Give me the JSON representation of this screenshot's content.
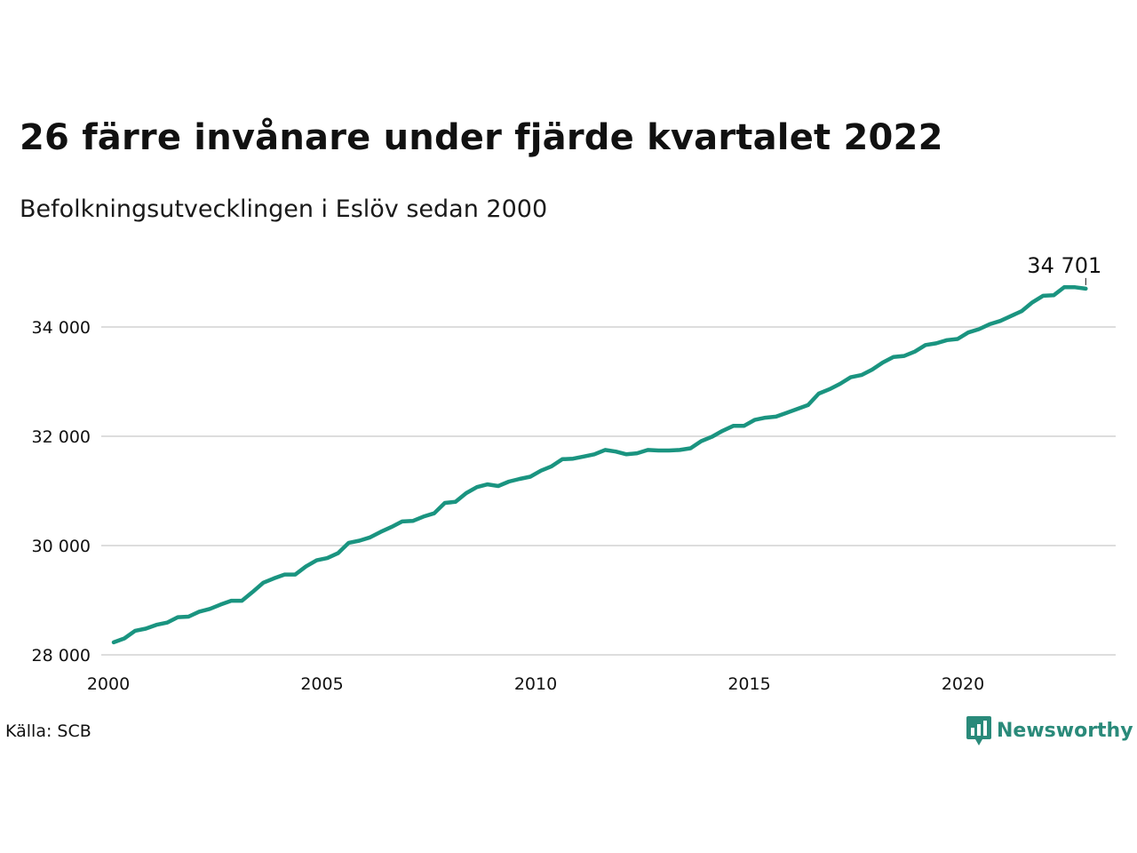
{
  "title": "26 färre invånare under fjärde kvartalet 2022",
  "subtitle": "Befolkningsutvecklingen i Eslöv sedan 2000",
  "source": "Källa: SCB",
  "brand": "Newsworthy",
  "colors": {
    "line": "#1a9480",
    "grid": "#dddddd",
    "text": "#111111",
    "brand": "#2a8a7a"
  },
  "chart_data": {
    "type": "line",
    "title": "26 färre invånare under fjärde kvartalet 2022",
    "subtitle": "Befolkningsutvecklingen i Eslöv sedan 2000",
    "xlabel": "",
    "ylabel": "",
    "grid": true,
    "xlim": [
      2000,
      2024
    ],
    "ylim": [
      28000,
      35000
    ],
    "x_ticks": [
      2000,
      2005,
      2010,
      2015,
      2020
    ],
    "x_tick_labels": [
      "2000",
      "2005",
      "2010",
      "2015",
      "2020"
    ],
    "y_ticks": [
      28000,
      30000,
      32000,
      34000
    ],
    "y_tick_labels": [
      "28 000",
      "30 000",
      "32 000",
      "34 000"
    ],
    "end_label": "34 701",
    "series": [
      {
        "x": [
          2000.125,
          2000.375,
          2000.625,
          2000.875,
          2001.125,
          2001.375,
          2001.625,
          2001.875,
          2002.125,
          2002.375,
          2002.625,
          2002.875,
          2003.125,
          2003.375,
          2003.625,
          2003.875,
          2004.125,
          2004.375,
          2004.625,
          2004.875,
          2005.125,
          2005.375,
          2005.625,
          2005.875,
          2006.125,
          2006.375,
          2006.625,
          2006.875,
          2007.125,
          2007.375,
          2007.625,
          2007.875,
          2008.125,
          2008.375,
          2008.625,
          2008.875,
          2009.125,
          2009.375,
          2009.625,
          2009.875,
          2010.125,
          2010.375,
          2010.625,
          2010.875,
          2011.125,
          2011.375,
          2011.625,
          2011.875,
          2012.125,
          2012.375,
          2012.625,
          2012.875,
          2013.125,
          2013.375,
          2013.625,
          2013.875,
          2014.125,
          2014.375,
          2014.625,
          2014.875,
          2015.125,
          2015.375,
          2015.625,
          2015.875,
          2016.125,
          2016.375,
          2016.625,
          2016.875,
          2017.125,
          2017.375,
          2017.625,
          2017.875,
          2018.125,
          2018.375,
          2018.625,
          2018.875,
          2019.125,
          2019.375,
          2019.625,
          2019.875,
          2020.125,
          2020.375,
          2020.625,
          2020.875,
          2021.125,
          2021.375,
          2021.625,
          2021.875,
          2022.125,
          2022.375,
          2022.625,
          2022.875
        ],
        "values": [
          28230,
          28300,
          28440,
          28480,
          28550,
          28590,
          28690,
          28700,
          28790,
          28840,
          28920,
          28990,
          28990,
          29150,
          29320,
          29400,
          29470,
          29470,
          29620,
          29730,
          29770,
          29860,
          30050,
          30090,
          30150,
          30250,
          30340,
          30440,
          30450,
          30530,
          30590,
          30780,
          30800,
          30960,
          31070,
          31120,
          31090,
          31170,
          31220,
          31260,
          31370,
          31450,
          31580,
          31590,
          31630,
          31670,
          31750,
          31720,
          31670,
          31690,
          31750,
          31740,
          31740,
          31750,
          31780,
          31910,
          31990,
          32100,
          32190,
          32190,
          32300,
          32340,
          32360,
          32430,
          32500,
          32570,
          32780,
          32860,
          32960,
          33080,
          33120,
          33220,
          33350,
          33450,
          33470,
          33550,
          33670,
          33700,
          33760,
          33780,
          33900,
          33960,
          34050,
          34110,
          34200,
          34290,
          34450,
          34570,
          34580,
          34730,
          34727,
          34701
        ]
      }
    ]
  }
}
